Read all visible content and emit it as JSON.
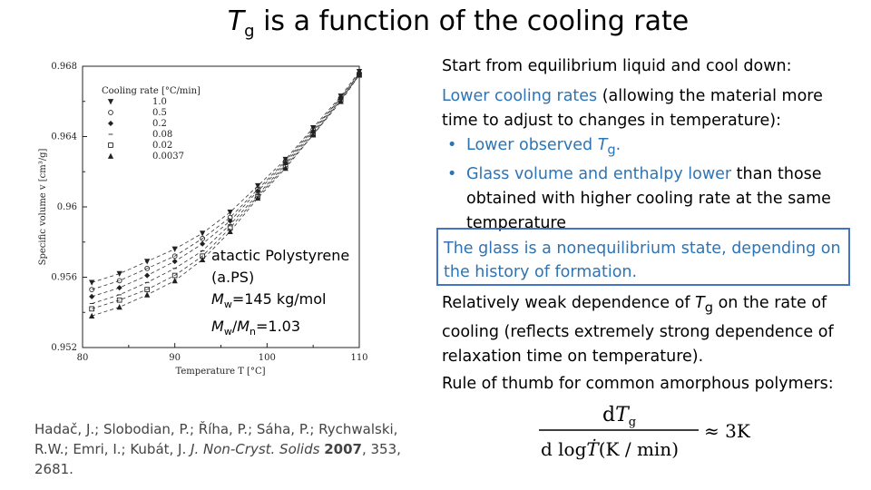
{
  "title": {
    "t": "T",
    "g": "g",
    "rest": " is a function of the cooling rate"
  },
  "right": {
    "intro": "Start from equilibrium liquid and cool down:",
    "lower_cooling_rates": "Lower cooling rates",
    "lower_rest": " (allowing the material more time to adjust to changes in temperature):",
    "bullet1_a": "Lower observed ",
    "bullet1_T": "T",
    "bullet1_g": "g",
    "bullet1_end": ".",
    "bullet2_a": "Glass volume and enthalpy lower",
    "bullet2_b": " than those obtained with higher cooling rate at the same temperature",
    "boxed": "The glass is a nonequilibrium state, depending on the history of formation.",
    "p3_a": "Relatively weak dependence of ",
    "p3_T": "T",
    "p3_g": "g",
    "p3_b": " on the rate of cooling (reflects extremely strong dependence of relaxation time on temperature).",
    "p4": "Rule of thumb for common amorphous polymers:"
  },
  "reference": {
    "authors": "Hadač, J.; Slobodian, P.; Říha, P.; Sáha, P.; Rychwalski, R.W.; Emri, I.; Kubát, J.",
    "journal": "J. Non-Cryst. Solids",
    "year": "2007",
    "rest": ", 353, 2681."
  },
  "annotation": {
    "line1": "atactic Polystyrene",
    "line2": "(a.PS)",
    "mw_M": "M",
    "mw_sub": "w",
    "mw_val": "=145 kg/mol",
    "ratio_M1": "M",
    "ratio_sub1": "w",
    "ratio_slash": "/",
    "ratio_M2": "M",
    "ratio_sub2": "n",
    "ratio_val": "=1.03"
  },
  "formula": {
    "num_d": "d",
    "num_T": "T",
    "num_g": "g",
    "den": "d log",
    "den_units": "(K / min)",
    "rhs": "≈ 3K"
  },
  "chart_data": {
    "type": "scatter",
    "xlabel": "Temperature T [°C]",
    "ylabel": "Specific volume v [cm³/g]",
    "xlim": [
      80,
      110
    ],
    "ylim": [
      0.952,
      0.968
    ],
    "xticks": [
      "80",
      "90",
      "100",
      "110"
    ],
    "yticks": [
      "0.952",
      "0.956",
      "0.96",
      "0.964",
      "0.968"
    ],
    "legend_title": "Cooling rate [°C/min]",
    "legend_position": "top-left",
    "series": [
      {
        "name": "1.0",
        "marker": "triangle-down",
        "x": [
          81,
          84,
          87,
          90,
          93,
          96,
          99,
          102,
          105,
          108,
          110
        ],
        "y": [
          0.9557,
          0.9562,
          0.9569,
          0.9576,
          0.9585,
          0.9597,
          0.9612,
          0.9627,
          0.9645,
          0.9663,
          0.9677
        ]
      },
      {
        "name": "0.5",
        "marker": "hexagon",
        "x": [
          81,
          84,
          87,
          90,
          93,
          96,
          99,
          102,
          105,
          108,
          110
        ],
        "y": [
          0.9553,
          0.9558,
          0.9565,
          0.9572,
          0.9582,
          0.9594,
          0.961,
          0.9626,
          0.9644,
          0.9662,
          0.9676
        ]
      },
      {
        "name": "0.2",
        "marker": "diamond",
        "x": [
          81,
          84,
          87,
          90,
          93,
          96,
          99,
          102,
          105,
          108,
          110
        ],
        "y": [
          0.9549,
          0.9554,
          0.9561,
          0.9569,
          0.9579,
          0.9592,
          0.9609,
          0.9625,
          0.9643,
          0.9662,
          0.9676
        ]
      },
      {
        "name": "0.08",
        "marker": "dash",
        "x": [
          81,
          84,
          87,
          90,
          93,
          96,
          99,
          102,
          105,
          108,
          110
        ],
        "y": [
          0.9545,
          0.955,
          0.9557,
          0.9565,
          0.9575,
          0.959,
          0.9607,
          0.9624,
          0.9642,
          0.9661,
          0.9675
        ]
      },
      {
        "name": "0.02",
        "marker": "square",
        "x": [
          81,
          84,
          87,
          90,
          93,
          96,
          99,
          102,
          105,
          108,
          110
        ],
        "y": [
          0.9542,
          0.9547,
          0.9553,
          0.9561,
          0.9572,
          0.9588,
          0.9606,
          0.9623,
          0.9641,
          0.9661,
          0.9675
        ]
      },
      {
        "name": "0.0037",
        "marker": "triangle-up",
        "x": [
          81,
          84,
          87,
          90,
          93,
          96,
          99,
          102,
          105,
          108,
          110
        ],
        "y": [
          0.9538,
          0.9543,
          0.955,
          0.9558,
          0.957,
          0.9586,
          0.9605,
          0.9622,
          0.9641,
          0.966,
          0.9675
        ]
      }
    ]
  }
}
